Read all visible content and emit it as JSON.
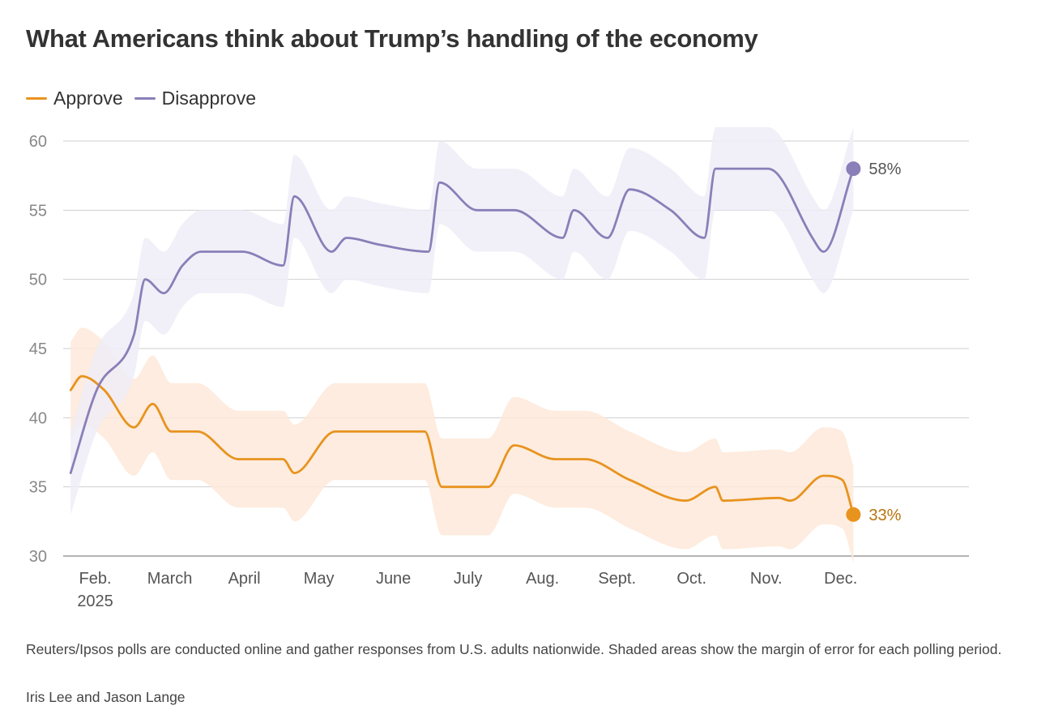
{
  "chart_data": {
    "type": "line",
    "title": "What Americans think about Trump’s handling of the economy",
    "xlabel": "",
    "ylabel": "",
    "ylim": [
      30,
      60
    ],
    "yticks": [
      "30",
      "35",
      "40",
      "45",
      "50",
      "55",
      "60"
    ],
    "grid": true,
    "legend_position": "top-left",
    "x_domain": [
      0,
      12.15
    ],
    "month_ticks": [
      {
        "label": "Feb.",
        "sub": "2025",
        "x": 0.43
      },
      {
        "label": "March",
        "sub": "",
        "x": 1.43
      },
      {
        "label": "April",
        "sub": "",
        "x": 2.43
      },
      {
        "label": "May",
        "sub": "",
        "x": 3.43
      },
      {
        "label": "June",
        "sub": "",
        "x": 4.43
      },
      {
        "label": "July",
        "sub": "",
        "x": 5.43
      },
      {
        "label": "Aug.",
        "sub": "",
        "x": 6.43
      },
      {
        "label": "Sept.",
        "sub": "",
        "x": 7.43
      },
      {
        "label": "Oct.",
        "sub": "",
        "x": 8.43
      },
      {
        "label": "Nov.",
        "sub": "",
        "x": 9.43
      },
      {
        "label": "Dec.",
        "sub": "",
        "x": 10.43
      }
    ],
    "series": [
      {
        "name": "Approve",
        "color": "#e8931e",
        "band_color": "#fde9d9",
        "end_label": "33%",
        "points": [
          [
            0.1,
            42
          ],
          [
            0.25,
            43
          ],
          [
            0.55,
            42
          ],
          [
            0.95,
            39.3
          ],
          [
            1.2,
            41
          ],
          [
            1.45,
            39
          ],
          [
            1.8,
            39
          ],
          [
            2.35,
            37
          ],
          [
            2.95,
            37
          ],
          [
            3.1,
            36
          ],
          [
            3.65,
            39
          ],
          [
            4.3,
            39
          ],
          [
            4.85,
            39
          ],
          [
            5.08,
            35
          ],
          [
            5.7,
            35
          ],
          [
            6.05,
            38
          ],
          [
            6.6,
            37
          ],
          [
            7.0,
            37
          ],
          [
            7.6,
            35.5
          ],
          [
            8.35,
            34
          ],
          [
            8.75,
            35
          ],
          [
            8.85,
            34
          ],
          [
            9.6,
            34.2
          ],
          [
            9.75,
            34
          ],
          [
            10.2,
            35.8
          ],
          [
            10.45,
            35.5
          ],
          [
            10.6,
            33
          ]
        ],
        "band_half_width": 3.5
      },
      {
        "name": "Disapprove",
        "color": "#8a7fb8",
        "band_color": "#efedf7",
        "end_label": "58%",
        "points": [
          [
            0.1,
            36
          ],
          [
            0.45,
            42
          ],
          [
            0.95,
            46
          ],
          [
            1.1,
            50
          ],
          [
            1.35,
            49
          ],
          [
            1.6,
            51
          ],
          [
            1.85,
            52
          ],
          [
            2.4,
            52
          ],
          [
            2.95,
            51
          ],
          [
            3.1,
            56
          ],
          [
            3.6,
            52
          ],
          [
            3.8,
            53
          ],
          [
            4.25,
            52.5
          ],
          [
            4.9,
            52
          ],
          [
            5.05,
            57
          ],
          [
            5.55,
            55
          ],
          [
            6.05,
            55
          ],
          [
            6.7,
            53
          ],
          [
            6.85,
            55
          ],
          [
            7.3,
            53
          ],
          [
            7.6,
            56.5
          ],
          [
            8.15,
            55
          ],
          [
            8.6,
            53
          ],
          [
            8.75,
            58
          ],
          [
            9.45,
            58
          ],
          [
            9.6,
            57.5
          ],
          [
            10.05,
            53
          ],
          [
            10.2,
            52
          ],
          [
            10.6,
            58
          ]
        ],
        "band_half_width": 3.0
      }
    ]
  },
  "legend": {
    "approve_label": "Approve",
    "disapprove_label": "Disapprove"
  },
  "footnote": "Reuters/Ipsos polls are conducted online and gather responses from U.S. adults nationwide. Shaded areas show the margin of error for each polling period.",
  "byline": "Iris Lee and Jason Lange"
}
